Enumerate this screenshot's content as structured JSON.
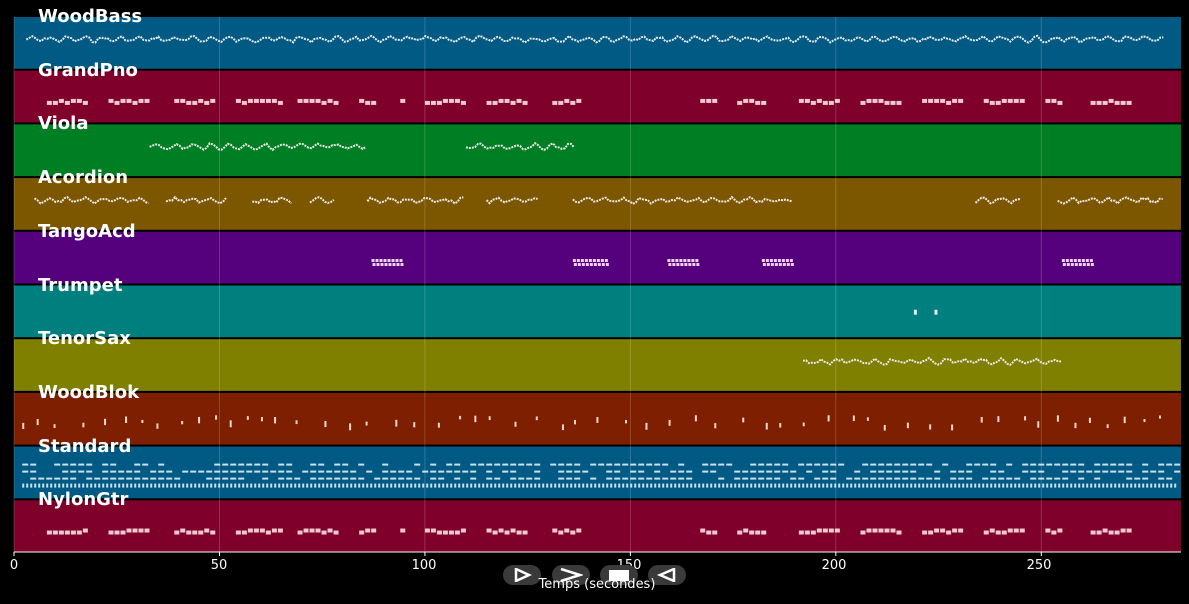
{
  "chart_data": {
    "type": "piano-roll",
    "xlabel": "Temps (secondes)",
    "xlim": [
      0,
      284
    ],
    "xticks": [
      0,
      50,
      100,
      150,
      200,
      250
    ],
    "grid": true,
    "tracks": [
      {
        "name": "WoodBass",
        "color": "#005a84",
        "notes_from": 3,
        "notes_to": 280,
        "style": "dense-wave"
      },
      {
        "name": "GrandPno",
        "color": "#80002c",
        "segments": [
          [
            8,
            18
          ],
          [
            23,
            33
          ],
          [
            39,
            48
          ],
          [
            54,
            65
          ],
          [
            69,
            78
          ],
          [
            84,
            87
          ],
          [
            94,
            95
          ],
          [
            100,
            110
          ],
          [
            115,
            124
          ],
          [
            131,
            137
          ],
          [
            167,
            170
          ],
          [
            176,
            183
          ],
          [
            191,
            200
          ],
          [
            206,
            215
          ],
          [
            221,
            230
          ],
          [
            236,
            246
          ],
          [
            251,
            255
          ],
          [
            262,
            272
          ]
        ],
        "style": "blocks"
      },
      {
        "name": "Viola",
        "color": "#007e23",
        "segments": [
          [
            33,
            86
          ],
          [
            110,
            137
          ]
        ],
        "style": "wave"
      },
      {
        "name": "Acordion",
        "color": "#7d5600",
        "segments": [
          [
            5,
            33
          ],
          [
            37,
            52
          ],
          [
            58,
            68
          ],
          [
            72,
            78
          ],
          [
            86,
            110
          ],
          [
            115,
            128
          ],
          [
            136,
            190
          ],
          [
            234,
            245
          ],
          [
            254,
            280
          ]
        ],
        "style": "sparse-wave"
      },
      {
        "name": "TangoAcd",
        "color": "#55007d",
        "segments": [
          [
            87,
            94
          ],
          [
            136,
            144
          ],
          [
            159,
            166
          ],
          [
            182,
            189
          ],
          [
            255,
            262
          ]
        ],
        "style": "clusters"
      },
      {
        "name": "Trumpet",
        "color": "#007f7f",
        "segments": [
          [
            219,
            220
          ],
          [
            224,
            225
          ]
        ],
        "style": "dots"
      },
      {
        "name": "TenorSax",
        "color": "#7f7f00",
        "segments": [
          [
            192,
            255
          ]
        ],
        "style": "wave"
      },
      {
        "name": "WoodBlok",
        "color": "#7d1f00",
        "segments": [
          [
            2,
            280
          ]
        ],
        "style": "scatter"
      },
      {
        "name": "Standard",
        "color": "#005a84",
        "notes_from": 2,
        "notes_to": 283,
        "style": "drums"
      },
      {
        "name": "NylonGtr",
        "color": "#80002c",
        "segments": [
          [
            8,
            18
          ],
          [
            23,
            33
          ],
          [
            39,
            48
          ],
          [
            54,
            65
          ],
          [
            69,
            78
          ],
          [
            84,
            87
          ],
          [
            94,
            95
          ],
          [
            100,
            110
          ],
          [
            115,
            124
          ],
          [
            131,
            137
          ],
          [
            167,
            170
          ],
          [
            176,
            183
          ],
          [
            191,
            200
          ],
          [
            206,
            215
          ],
          [
            221,
            230
          ],
          [
            236,
            246
          ],
          [
            251,
            255
          ],
          [
            262,
            272
          ]
        ],
        "style": "blocks"
      }
    ]
  },
  "controls": {
    "play_label": "play",
    "fast_forward_label": "fast-forward",
    "stop_label": "stop",
    "rewind_label": "rewind"
  }
}
